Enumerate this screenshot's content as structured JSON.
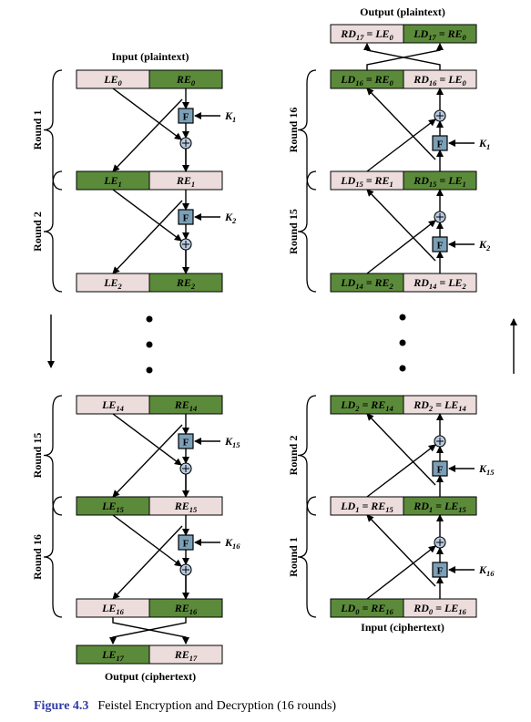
{
  "colors": {
    "green": "#5b8b3a",
    "pink": "#ecdcdc",
    "fbox": "#7ba0b8",
    "stroke": "#000000"
  },
  "figure": {
    "number": "Figure 4.3",
    "title": "Feistel Encryption and Decryption (16 rounds)"
  },
  "encryption": {
    "input_label": "Input (plaintext)",
    "output_label": "Output (ciphertext)",
    "rows": [
      [
        "LE",
        "0",
        "RE",
        "0"
      ],
      [
        "LE",
        "1",
        "RE",
        "1"
      ],
      [
        "LE",
        "2",
        "RE",
        "2"
      ],
      [
        "LE",
        "14",
        "RE",
        "14"
      ],
      [
        "LE",
        "15",
        "RE",
        "15"
      ],
      [
        "LE",
        "16",
        "RE",
        "16"
      ],
      [
        "LE",
        "17",
        "RE",
        "17"
      ]
    ],
    "rounds": [
      "Round 1",
      "Round 2",
      "Round 15",
      "Round 16"
    ],
    "keys": [
      [
        "K",
        "1"
      ],
      [
        "K",
        "2"
      ],
      [
        "K",
        "15"
      ],
      [
        "K",
        "16"
      ]
    ]
  },
  "decryption": {
    "output_label": "Output (plaintext)",
    "input_label": "Input (ciphertext)",
    "rows": [
      [
        "RD",
        "17",
        "LE",
        "0",
        "LD",
        "17",
        "RE",
        "0"
      ],
      [
        "LD",
        "16",
        "RE",
        "0",
        "RD",
        "16",
        "LE",
        "0"
      ],
      [
        "LD",
        "15",
        "RE",
        "1",
        "RD",
        "15",
        "LE",
        "1"
      ],
      [
        "LD",
        "14",
        "RE",
        "2",
        "RD",
        "14",
        "LE",
        "2"
      ],
      [
        "LD",
        "2",
        "RE",
        "14",
        "RD",
        "2",
        "LE",
        "14"
      ],
      [
        "LD",
        "1",
        "RE",
        "15",
        "RD",
        "1",
        "LE",
        "15"
      ],
      [
        "LD",
        "0",
        "RE",
        "16",
        "RD",
        "0",
        "LE",
        "16"
      ]
    ],
    "rounds": [
      "Round 16",
      "Round 15",
      "Round 2",
      "Round 1"
    ],
    "keys": [
      [
        "K",
        "1"
      ],
      [
        "K",
        "2"
      ],
      [
        "K",
        "15"
      ],
      [
        "K",
        "16"
      ]
    ]
  },
  "f_label": "F",
  "xor_symbol": "+"
}
